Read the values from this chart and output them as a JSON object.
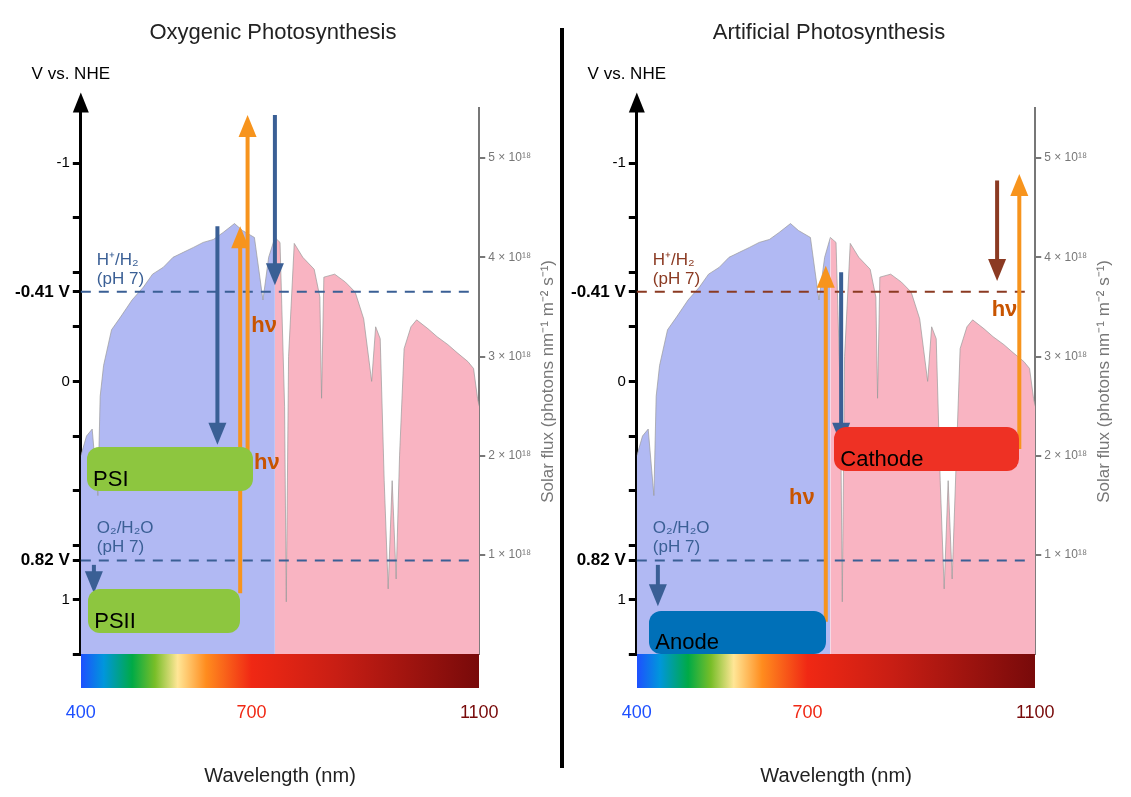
{
  "chart_data": [
    {
      "type": "area",
      "title": "Oxygenic Photosynthesis",
      "xlabel": "Wavelength (nm)",
      "ylabel": "V vs. NHE",
      "y2label": "Solar flux (photons nm⁻¹ m⁻² s⁻¹)",
      "xlim": [
        400,
        1100
      ],
      "xticks": [
        400,
        700,
        1100
      ],
      "ylim": [
        1.25,
        -1.25
      ],
      "yticks": [
        -1,
        {
          "value": -0.75,
          "label": null
        },
        {
          "value": -0.5,
          "label": null
        },
        {
          "value": -0.41,
          "label": "-0.41 V"
        },
        {
          "value": -0.25,
          "label": null
        },
        0,
        {
          "value": 0.25,
          "label": null
        },
        {
          "value": 0.5,
          "label": null
        },
        {
          "value": 0.75,
          "label": null
        },
        {
          "value": 0.82,
          "label": "0.82 V"
        },
        1,
        {
          "value": 1.25,
          "label": null
        }
      ],
      "y2lim": [
        0,
        5.5e+18
      ],
      "y2ticks": [
        {
          "value": 1e+18,
          "label": "1 × 10¹⁸"
        },
        {
          "value": 2e+18,
          "label": "2 × 10¹⁸"
        },
        {
          "value": 3e+18,
          "label": "3 × 10¹⁸"
        },
        {
          "value": 4e+18,
          "label": "4 × 10¹⁸"
        },
        {
          "value": 5e+18,
          "label": "5 × 10¹⁸"
        }
      ],
      "series": [
        {
          "color": "#b1b9f3",
          "axis": "y2",
          "x": [
            400,
            410,
            420,
            430,
            434,
            440,
            454,
            470,
            490,
            510,
            526,
            545,
            562,
            580,
            598,
            615,
            633,
            650,
            670,
            684,
            705,
            720,
            730,
            741
          ],
          "values": [
            2e+18,
            2.2e+18,
            2.27e+18,
            1.6e+18,
            2.6e+18,
            2.91e+18,
            3.27e+18,
            3.4e+18,
            3.57e+18,
            3.7e+18,
            3.83e+18,
            3.9e+18,
            4e+18,
            4.05e+18,
            4.1e+18,
            4.15e+18,
            4.18e+18,
            4.25e+18,
            4.34e+18,
            4.27e+18,
            4.2e+18,
            3.57e+18,
            4e+18,
            4.2e+18
          ]
        },
        {
          "color": "#f9b4c2",
          "axis": "y2",
          "x": [
            741,
            750,
            758,
            761,
            765,
            775,
            790,
            810,
            820,
            823,
            827,
            846,
            865,
            882,
            897,
            911,
            918,
            926,
            933,
            940,
            947,
            954,
            960,
            968,
            980,
            990,
            1010,
            1026,
            1045,
            1061,
            1080,
            1090,
            1097,
            1100
          ],
          "values": [
            4.2e+18,
            4.15e+18,
            2.5e+18,
            5.3e+17,
            3e+18,
            4.14e+18,
            4e+18,
            3.88e+18,
            3.6e+18,
            2.58e+18,
            3.8e+18,
            3.83e+18,
            3.75e+18,
            3.65e+18,
            3.38e+18,
            2.75e+18,
            3.3e+18,
            3.18e+18,
            1.75e+18,
            6.6e+17,
            1.75e+18,
            7.6e+17,
            2e+18,
            3.08e+18,
            3.3e+18,
            3.37e+18,
            3.28e+18,
            3.2e+18,
            3.12e+18,
            3.04e+18,
            2.95e+18,
            2.88e+18,
            2.58e+18,
            2.5e+18
          ]
        }
      ],
      "ref_lines": [
        {
          "axis": "y",
          "value": -0.41,
          "label": "H⁺/H₂\n(pH 7)",
          "color": "#3a5f95",
          "line_style": "dashed"
        },
        {
          "axis": "y",
          "value": 0.82,
          "label": "O₂/H₂O\n(pH 7)",
          "color": "#3a5f95",
          "line_style": "dashed"
        }
      ],
      "annotations": [
        {
          "text": "PSI",
          "x": 411,
          "y": 0.3
        },
        "PSII",
        "hν",
        "hν"
      ]
    },
    {
      "type": "area",
      "title": "Artificial Photosynthesis",
      "xlabel": "Wavelength (nm)",
      "ylabel": "V vs. NHE",
      "y2label": "Solar flux (photons nm⁻¹ m⁻² s⁻¹)",
      "xlim": [
        400,
        1100
      ],
      "xticks": [
        400,
        700,
        1100
      ],
      "ylim": [
        1.25,
        -1.25
      ],
      "yticks": [
        -1,
        {
          "value": -0.75,
          "label": null
        },
        {
          "value": -0.5,
          "label": null
        },
        {
          "value": -0.41,
          "label": "-0.41 V"
        },
        {
          "value": -0.25,
          "label": null
        },
        0,
        {
          "value": 0.25,
          "label": null
        },
        {
          "value": 0.5,
          "label": null
        },
        {
          "value": 0.75,
          "label": null
        },
        {
          "value": 0.82,
          "label": "0.82 V"
        },
        1,
        {
          "value": 1.25,
          "label": null
        }
      ],
      "y2lim": [
        0,
        5.5e+18
      ],
      "y2ticks": [
        {
          "value": 1e+18,
          "label": "1 × 10¹⁸"
        },
        {
          "value": 2e+18,
          "label": "2 × 10¹⁸"
        },
        {
          "value": 3e+18,
          "label": "3 × 10¹⁸"
        },
        {
          "value": 4e+18,
          "label": "4 × 10¹⁸"
        },
        {
          "value": 5e+18,
          "label": "5 × 10¹⁸"
        }
      ],
      "series": [
        {
          "color": "#b1b9f3",
          "axis": "y2",
          "x": [
            400,
            410,
            420,
            430,
            434,
            440,
            454,
            470,
            490,
            510,
            526,
            545,
            562,
            580,
            598,
            615,
            633,
            650,
            670,
            684,
            705,
            720,
            730,
            740
          ],
          "values": [
            2e+18,
            2.2e+18,
            2.27e+18,
            1.6e+18,
            2.6e+18,
            2.91e+18,
            3.27e+18,
            3.4e+18,
            3.57e+18,
            3.7e+18,
            3.83e+18,
            3.9e+18,
            4e+18,
            4.05e+18,
            4.1e+18,
            4.15e+18,
            4.18e+18,
            4.25e+18,
            4.34e+18,
            4.27e+18,
            4.2e+18,
            3.57e+18,
            4e+18,
            4.2e+18
          ]
        },
        {
          "color": "#f9b4c2",
          "axis": "y2",
          "x": [
            740,
            750,
            758,
            761,
            765,
            775,
            790,
            810,
            820,
            823,
            827,
            846,
            865,
            882,
            897,
            911,
            918,
            926,
            933,
            940,
            947,
            954,
            960,
            968,
            980,
            990,
            1010,
            1026,
            1045,
            1061,
            1080,
            1090,
            1097,
            1100
          ],
          "values": [
            4.2e+18,
            4.15e+18,
            2.5e+18,
            5.3e+17,
            3e+18,
            4.14e+18,
            4e+18,
            3.88e+18,
            3.6e+18,
            2.58e+18,
            3.8e+18,
            3.83e+18,
            3.75e+18,
            3.65e+18,
            3.38e+18,
            2.75e+18,
            3.3e+18,
            3.18e+18,
            1.75e+18,
            6.6e+17,
            1.75e+18,
            7.6e+17,
            null,
            3.08e+18,
            3.3e+18,
            3.37e+18,
            3.28e+18,
            3.2e+18,
            3.12e+18,
            3.04e+18,
            2.95e+18,
            2.88e+18,
            2.58e+18,
            2.5e+18
          ]
        }
      ],
      "ref_lines": [
        {
          "axis": "y",
          "value": -0.41,
          "label": "H⁺/H₂\n(pH 7)",
          "color": "#8b3a22",
          "line_style": "dashed"
        },
        {
          "axis": "y",
          "value": 0.82,
          "label": "O₂/H₂O\n(pH 7)",
          "color": "#3a5f95",
          "line_style": "dashed"
        }
      ],
      "annotations": [
        {
          "text": "Cathode",
          "x": 747,
          "y": 0.21
        },
        "Anode",
        "hν",
        "hν"
      ]
    }
  ]
}
